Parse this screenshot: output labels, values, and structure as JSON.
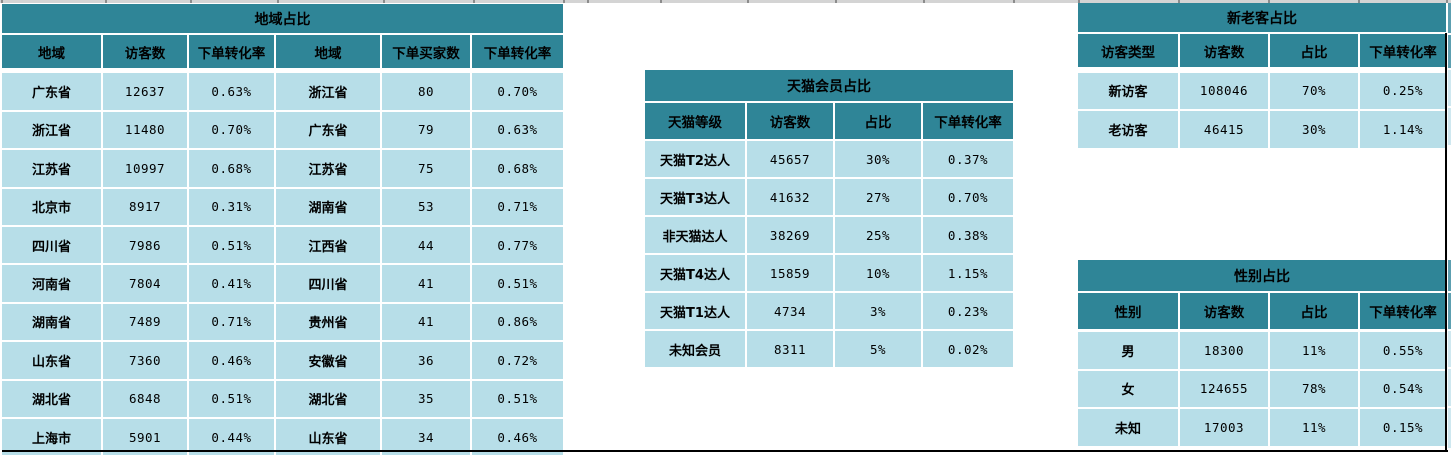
{
  "colors": {
    "header_teal": "#2F8597",
    "body_blue": "#B7DEE8",
    "sliver_teal": "#5C9FB0",
    "sliver_blue": "#CFE8F0",
    "outer_border": "#000000",
    "grid_strip": "#D4D4D4"
  },
  "tables": {
    "region": {
      "title": "地域占比",
      "headers": [
        "地域",
        "访客数",
        "下单转化率",
        "地域",
        "下单买家数",
        "下单转化率"
      ],
      "rows": [
        [
          "广东省",
          "12637",
          "0.63%",
          "浙江省",
          "80",
          "0.70%"
        ],
        [
          "浙江省",
          "11480",
          "0.70%",
          "广东省",
          "79",
          "0.63%"
        ],
        [
          "江苏省",
          "10997",
          "0.68%",
          "江苏省",
          "75",
          "0.68%"
        ],
        [
          "北京市",
          "8917",
          "0.31%",
          "湖南省",
          "53",
          "0.71%"
        ],
        [
          "四川省",
          "7986",
          "0.51%",
          "江西省",
          "44",
          "0.77%"
        ],
        [
          "河南省",
          "7804",
          "0.41%",
          "四川省",
          "41",
          "0.51%"
        ],
        [
          "湖南省",
          "7489",
          "0.71%",
          "贵州省",
          "41",
          "0.86%"
        ],
        [
          "山东省",
          "7360",
          "0.46%",
          "安徽省",
          "36",
          "0.72%"
        ],
        [
          "湖北省",
          "6848",
          "0.51%",
          "湖北省",
          "35",
          "0.51%"
        ],
        [
          "上海市",
          "5901",
          "0.44%",
          "山东省",
          "34",
          "0.46%"
        ]
      ]
    },
    "tmall": {
      "title": "天猫会员占比",
      "headers": [
        "天猫等级",
        "访客数",
        "占比",
        "下单转化率"
      ],
      "rows": [
        [
          "天猫T2达人",
          "45657",
          "30%",
          "0.37%"
        ],
        [
          "天猫T3达人",
          "41632",
          "27%",
          "0.70%"
        ],
        [
          "非天猫达人",
          "38269",
          "25%",
          "0.38%"
        ],
        [
          "天猫T4达人",
          "15859",
          "10%",
          "1.15%"
        ],
        [
          "天猫T1达人",
          "4734",
          "3%",
          "0.23%"
        ],
        [
          "未知会员",
          "8311",
          "5%",
          "0.02%"
        ]
      ]
    },
    "visitor_type": {
      "title": "新老客占比",
      "headers": [
        "访客类型",
        "访客数",
        "占比",
        "下单转化率"
      ],
      "rows": [
        [
          "新访客",
          "108046",
          "70%",
          "0.25%"
        ],
        [
          "老访客",
          "46415",
          "30%",
          "1.14%"
        ]
      ]
    },
    "gender": {
      "title": "性别占比",
      "headers": [
        "性别",
        "访客数",
        "占比",
        "下单转化率"
      ],
      "rows": [
        [
          "男",
          "18300",
          "11%",
          "0.55%"
        ],
        [
          "女",
          "124655",
          "78%",
          "0.54%"
        ],
        [
          "未知",
          "17003",
          "11%",
          "0.15%"
        ]
      ]
    }
  }
}
